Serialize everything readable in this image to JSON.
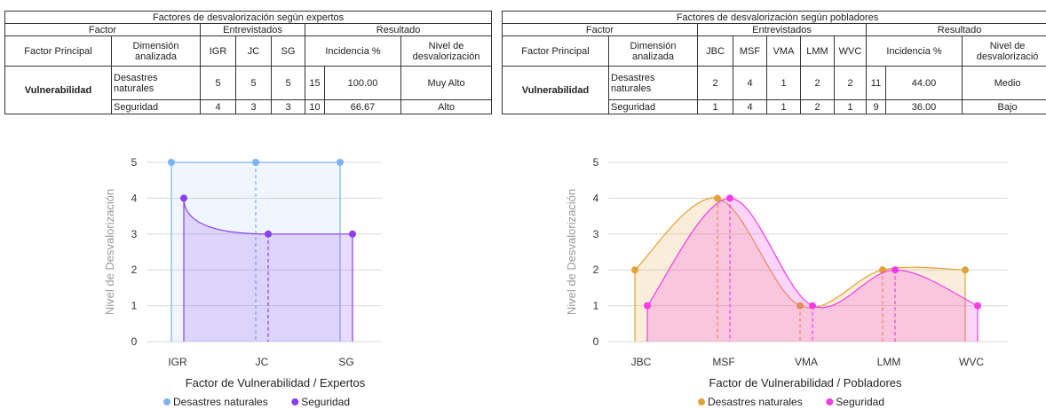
{
  "tables": [
    {
      "title": "Factores de desvalorización según expertos",
      "group_factor": "Factor",
      "group_entrevistados": "Entrevistados",
      "group_resultado": "Resultado",
      "col_factor": "Factor Principal",
      "col_dimension": "Dimensión analizada",
      "interviewers": [
        "IGR",
        "JC",
        "SG"
      ],
      "col_incidencia": "Incidencia %",
      "col_nivel": "Nivel de desvalorización",
      "factor": "Vulnerabilidad",
      "rows": [
        {
          "dimension": "Desastres naturales",
          "scores": [
            "5",
            "5",
            "5"
          ],
          "total": "15",
          "pct": "100.00",
          "nivel": "Muy Alto"
        },
        {
          "dimension": "Seguridad",
          "scores": [
            "4",
            "3",
            "3"
          ],
          "total": "10",
          "pct": "66.67",
          "nivel": "Alto"
        }
      ]
    },
    {
      "title": "Factores de desvalorización según pobladores",
      "group_factor": "Factor",
      "group_entrevistados": "Entrevistados",
      "group_resultado": "Resultado",
      "col_factor": "Factor Principal",
      "col_dimension": "Dimensión analizada",
      "interviewers": [
        "JBC",
        "MSF",
        "VMA",
        "LMM",
        "WVC"
      ],
      "col_incidencia": "Incidencia %",
      "col_nivel": "Nivel de desvalorizació",
      "factor": "Vulnerabilidad",
      "rows": [
        {
          "dimension": "Desastres naturales",
          "scores": [
            "2",
            "4",
            "1",
            "2",
            "2"
          ],
          "total": "11",
          "pct": "44.00",
          "nivel": "Medio"
        },
        {
          "dimension": "Seguridad",
          "scores": [
            "1",
            "4",
            "1",
            "2",
            "1"
          ],
          "total": "9",
          "pct": "36.00",
          "nivel": "Bajo"
        }
      ]
    }
  ],
  "chart_data": [
    {
      "type": "area",
      "categories": [
        "IGR",
        "JC",
        "SG"
      ],
      "series": [
        {
          "name": "Desastres naturales",
          "values": [
            5,
            5,
            5
          ],
          "color": "#7ab4f5"
        },
        {
          "name": "Seguridad",
          "values": [
            4,
            3,
            3
          ],
          "color": "#8a3ff0"
        }
      ],
      "xlabel": "Factor de Vulnerabilidad / Expertos",
      "ylabel": "Nivel de Desvalorización",
      "ylim": [
        0,
        5
      ],
      "yticks": [
        "0",
        "1",
        "2",
        "3",
        "4",
        "5"
      ],
      "grid": true,
      "legend": "bottom"
    },
    {
      "type": "area",
      "categories": [
        "JBC",
        "MSF",
        "VMA",
        "LMM",
        "WVC"
      ],
      "series": [
        {
          "name": "Desastres naturales",
          "values": [
            2,
            4,
            1,
            2,
            2
          ],
          "color": "#e3a237"
        },
        {
          "name": "Seguridad",
          "values": [
            1,
            4,
            1,
            2,
            1
          ],
          "color": "#f53ce8"
        }
      ],
      "xlabel": "Factor de Vulnerabilidad / Pobladores",
      "ylabel": "Nivel de Desvalorización",
      "ylim": [
        0,
        5
      ],
      "yticks": [
        "0",
        "1",
        "2",
        "3",
        "4",
        "5"
      ],
      "grid": true,
      "legend": "bottom"
    }
  ]
}
